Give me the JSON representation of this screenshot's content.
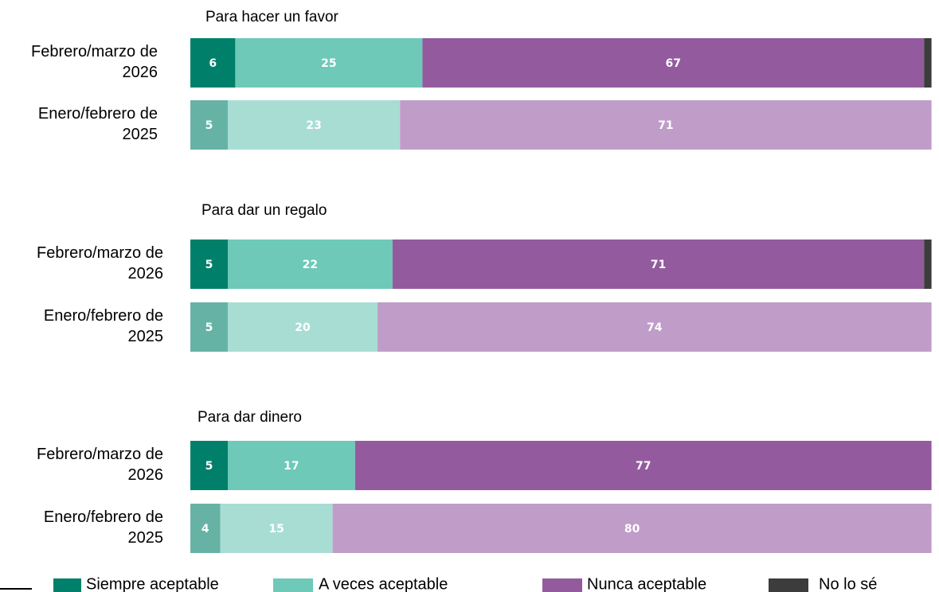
{
  "chart_data": {
    "type": "bar",
    "orientation": "horizontal",
    "stacked": true,
    "xlim": [
      0,
      100
    ],
    "series": [
      {
        "name": "Siempre aceptable",
        "color": "#00806a",
        "light_color": "#66b3a5"
      },
      {
        "name": "A veces aceptable",
        "color": "#6ec9b8",
        "light_color": "#a8ddd4"
      },
      {
        "name": "Nunca aceptable",
        "color": "#935b9e",
        "light_color": "#c09dc8"
      },
      {
        "name": "No lo sé",
        "color": "#3c3c3c",
        "light_color": "#8a8a8a"
      }
    ],
    "groups": [
      {
        "title": "Para hacer un favor",
        "categories": [
          "Febrero/marzo de 2026",
          "Enero/febrero de 2025"
        ],
        "values": [
          [
            6,
            25,
            67,
            1
          ],
          [
            5,
            23,
            71,
            null
          ]
        ]
      },
      {
        "title": "Para dar un regalo",
        "categories": [
          "Febrero/marzo de 2026",
          "Enero/febrero de 2025"
        ],
        "values": [
          [
            5,
            22,
            71,
            1
          ],
          [
            5,
            20,
            74,
            null
          ]
        ]
      },
      {
        "title": "Para dar dinero",
        "categories": [
          "Febrero/marzo de 2026",
          "Enero/febrero de 2025"
        ],
        "values": [
          [
            5,
            17,
            77,
            null
          ],
          [
            4,
            15,
            80,
            null
          ]
        ]
      }
    ]
  }
}
